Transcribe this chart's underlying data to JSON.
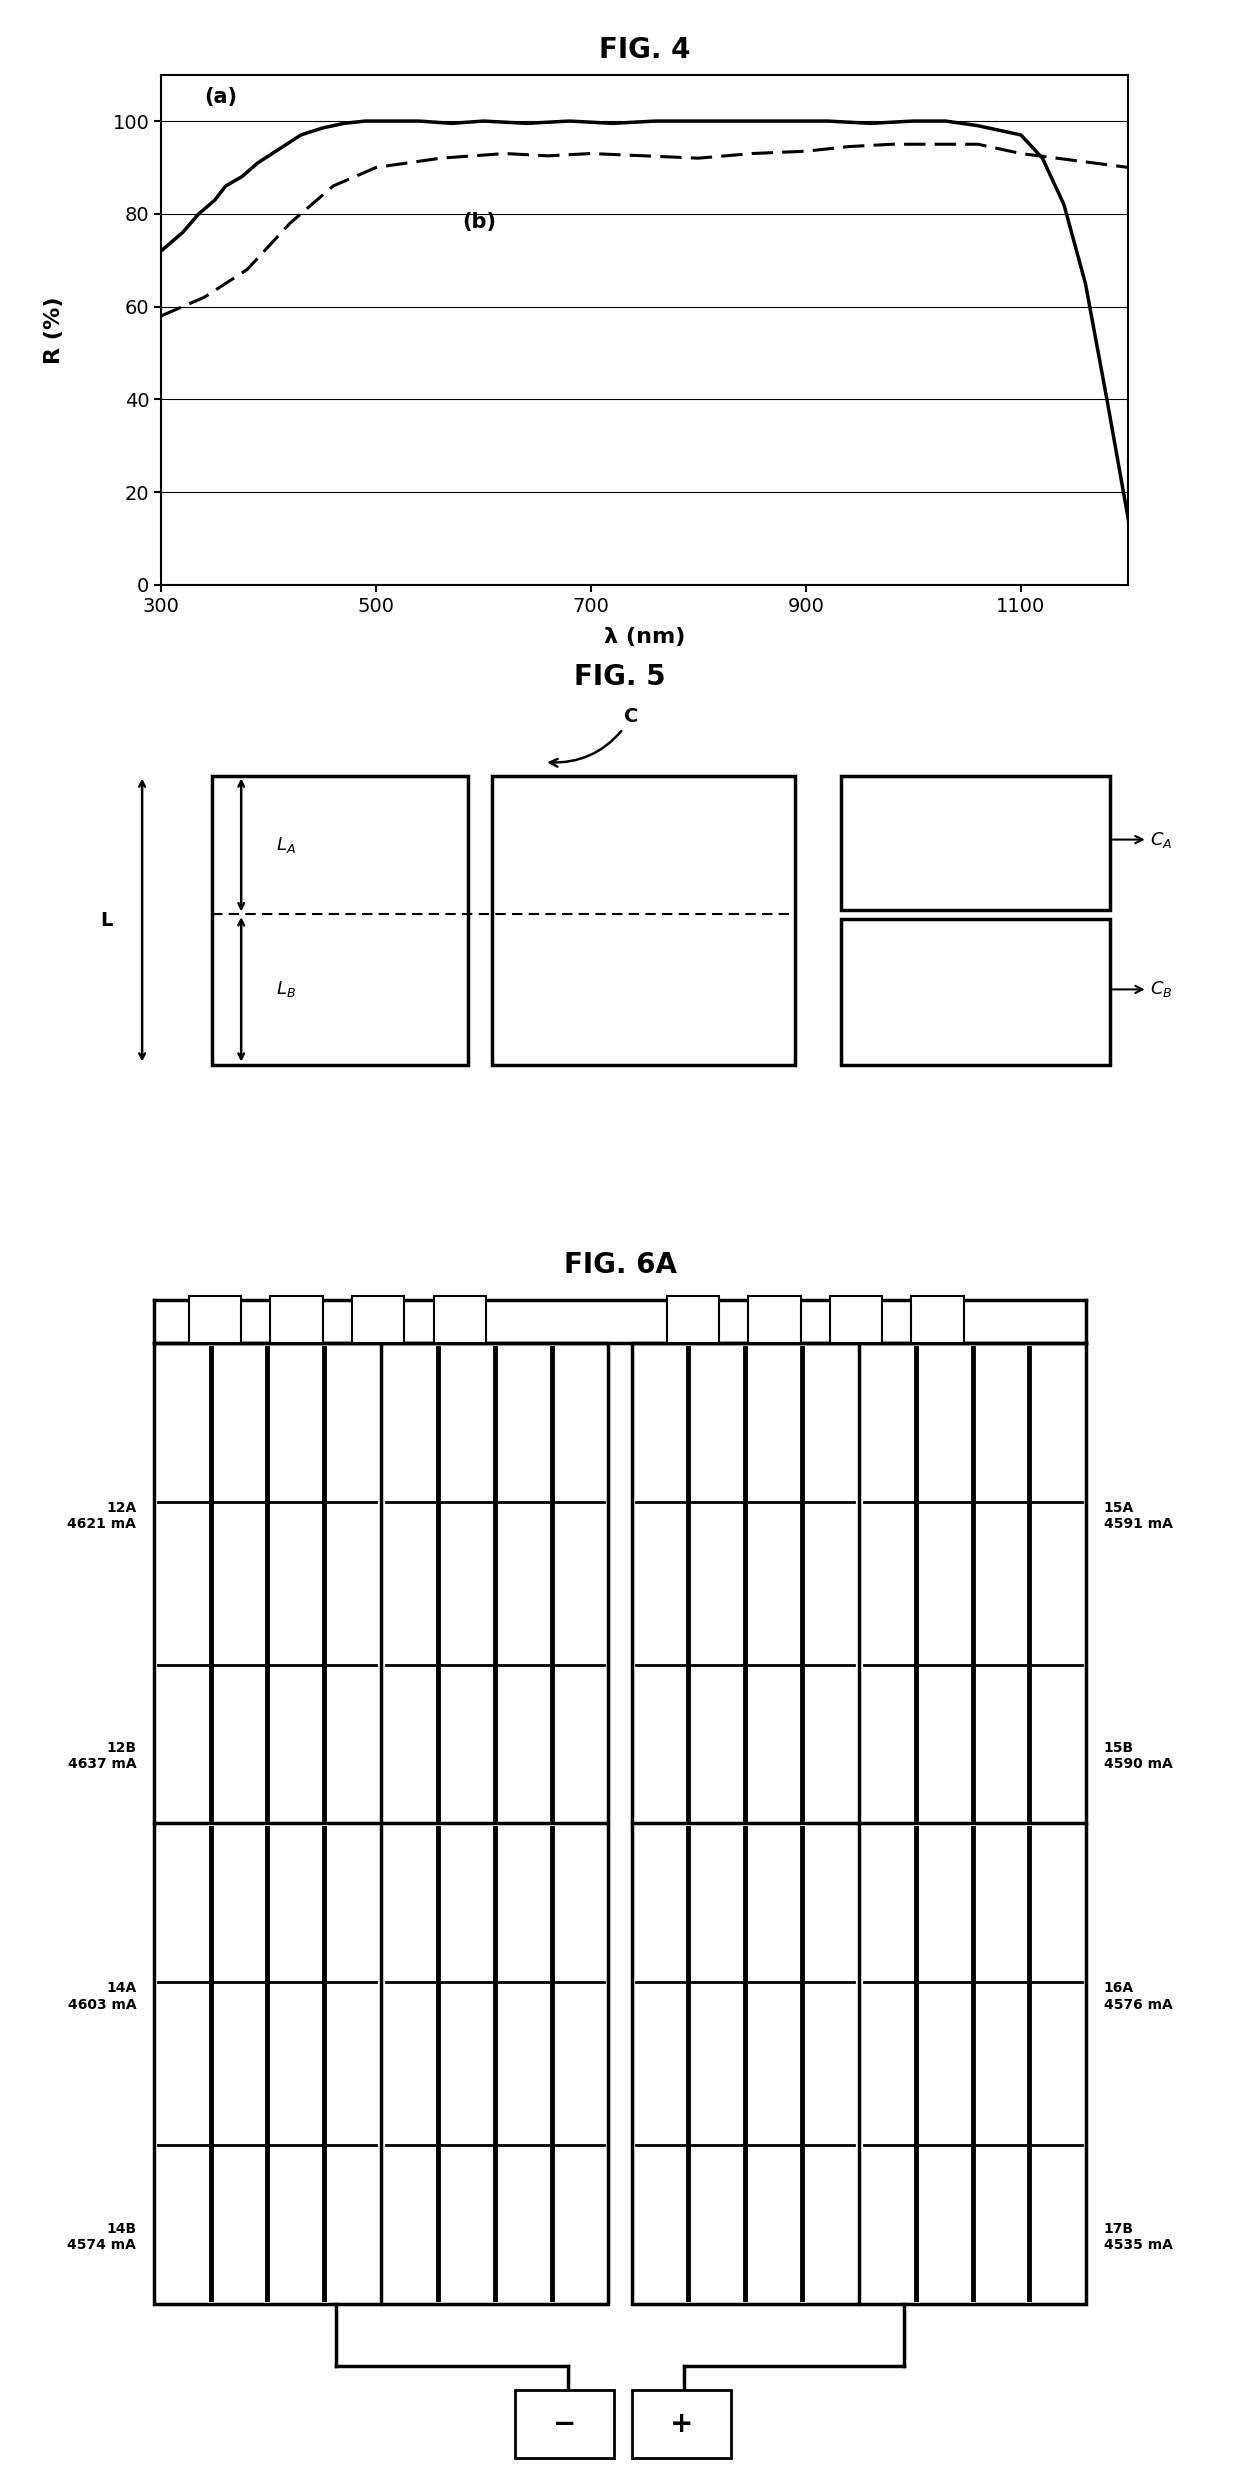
{
  "fig4_title": "FIG. 4",
  "fig5_title": "FIG. 5",
  "fig6a_title": "FIG. 6A",
  "fig4_xlabel": "λ (nm)",
  "fig4_ylabel": "R (%)",
  "fig4_xlim": [
    300,
    1200
  ],
  "fig4_ylim": [
    0,
    110
  ],
  "fig4_yticks": [
    0,
    20,
    40,
    60,
    80,
    100
  ],
  "fig4_xticks": [
    300,
    500,
    700,
    900,
    1100
  ],
  "curve_a_label": "(a)",
  "curve_b_label": "(b)",
  "left_labels": [
    "12A\n4621 mA",
    "12B\n4637 mA",
    "14A\n4603 mA",
    "14B\n4574 mA"
  ],
  "right_labels": [
    "15A\n4591 mA",
    "15B\n4590 mA",
    "16A\n4576 mA",
    "17B\n4535 mA"
  ],
  "background_color": "#ffffff"
}
